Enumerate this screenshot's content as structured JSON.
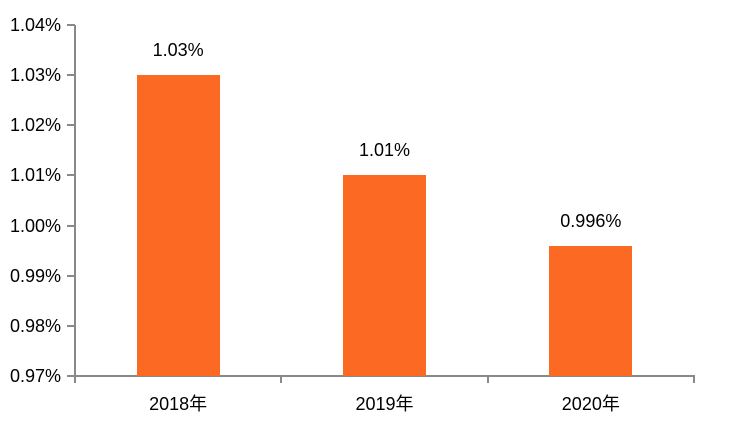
{
  "chart_data": {
    "type": "bar",
    "title": "",
    "xlabel": "",
    "ylabel": "",
    "categories": [
      "2018年",
      "2019年",
      "2020年"
    ],
    "values": [
      1.03,
      1.01,
      0.996
    ],
    "data_labels": [
      "1.03%",
      "1.01%",
      "0.996%"
    ],
    "y_ticks": [
      "1.04%",
      "1.03%",
      "1.02%",
      "1.01%",
      "1.00%",
      "0.99%",
      "0.98%",
      "0.97%"
    ],
    "y_tick_values": [
      1.04,
      1.03,
      1.02,
      1.01,
      1.0,
      0.99,
      0.98,
      0.97
    ],
    "ylim": [
      0.97,
      1.04
    ],
    "grid": false,
    "legend": "none",
    "colors": {
      "bar": "#FB6923",
      "axis": "#898989",
      "text": "#000000",
      "background": "#FFFFFF"
    }
  }
}
